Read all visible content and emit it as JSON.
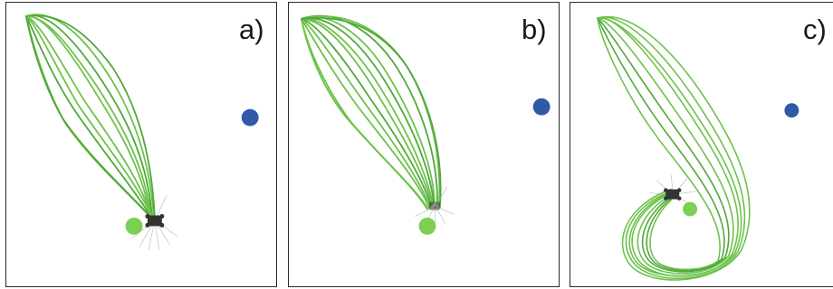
{
  "panels": [
    {
      "id": "a",
      "label": "a)"
    },
    {
      "id": "b",
      "label": "b)"
    },
    {
      "id": "c",
      "label": "c)"
    }
  ],
  "colors": {
    "trajectory": "#6cc24a",
    "trajectory_dark": "#4fa83a",
    "goal_ball": "#7ccf52",
    "obstacle_ball": "#2f5aa8",
    "robot": "#333333",
    "sensor_rays": "#b5b5b5",
    "frame": "#2a2a2a"
  },
  "icons": {
    "robot": "robot-icon",
    "goal": "goal-ball-icon",
    "obstacle": "obstacle-ball-icon"
  }
}
